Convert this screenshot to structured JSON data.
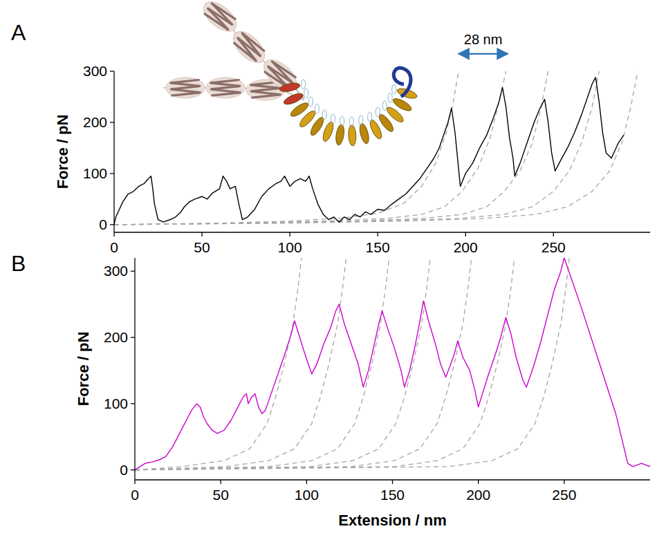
{
  "chart_data": [
    {
      "type": "line",
      "title": "A",
      "y_label": "Force / pN",
      "grid": false,
      "xlim": [
        0,
        305
      ],
      "xticks": [
        0,
        50,
        100,
        150,
        200,
        250
      ],
      "ylim": [
        -15,
        300
      ],
      "yticks": [
        0,
        100,
        200,
        300
      ],
      "series": [
        {
          "color": "#000000",
          "line_style": "solid",
          "x": [
            0,
            1,
            3,
            5,
            8,
            11,
            14,
            17,
            19,
            21,
            22,
            23,
            25,
            28,
            32,
            35,
            38,
            40,
            43,
            46,
            50,
            53,
            56,
            60,
            62,
            64,
            66,
            69,
            71,
            73,
            76,
            80,
            84,
            88,
            92,
            95,
            97,
            100,
            103,
            106,
            109,
            111,
            113,
            116,
            119,
            122,
            125,
            128,
            131,
            134,
            137,
            140,
            143,
            146,
            150,
            154,
            158,
            162,
            166,
            170,
            174,
            178,
            182,
            185,
            188,
            190,
            192,
            194,
            196,
            197,
            200,
            204,
            208,
            212,
            216,
            219,
            221,
            223,
            225,
            227,
            228,
            231,
            235,
            239,
            242,
            245,
            247,
            249,
            251,
            254,
            258,
            262,
            266,
            270,
            272,
            274,
            276,
            278,
            280,
            283,
            287,
            290
          ],
          "values": [
            0,
            15,
            30,
            45,
            60,
            65,
            75,
            80,
            88,
            95,
            70,
            40,
            10,
            5,
            10,
            15,
            25,
            35,
            45,
            50,
            55,
            50,
            62,
            70,
            95,
            85,
            70,
            75,
            40,
            10,
            15,
            30,
            55,
            70,
            80,
            85,
            95,
            75,
            85,
            90,
            85,
            95,
            70,
            40,
            20,
            10,
            15,
            5,
            15,
            10,
            20,
            15,
            25,
            20,
            30,
            28,
            40,
            50,
            60,
            75,
            90,
            110,
            130,
            150,
            180,
            200,
            228,
            180,
            110,
            75,
            100,
            120,
            150,
            175,
            210,
            240,
            268,
            230,
            170,
            130,
            95,
            120,
            160,
            200,
            225,
            245,
            200,
            140,
            105,
            125,
            150,
            180,
            215,
            255,
            275,
            288,
            240,
            180,
            140,
            130,
            160,
            175
          ]
        },
        {
          "color": "#a6a6a6",
          "line_style": "dashed",
          "x": [
            0,
            60,
            100,
            130,
            150,
            165,
            175,
            183,
            189,
            193,
            196
          ],
          "values": [
            0,
            3,
            7,
            13,
            22,
            42,
            75,
            120,
            180,
            240,
            300
          ]
        },
        {
          "color": "#a6a6a6",
          "line_style": "dashed",
          "x": [
            0,
            70,
            120,
            155,
            175,
            188,
            198,
            207,
            214,
            219,
            223
          ],
          "values": [
            0,
            3,
            7,
            12,
            20,
            35,
            65,
            110,
            170,
            240,
            300
          ]
        },
        {
          "color": "#a6a6a6",
          "line_style": "dashed",
          "x": [
            0,
            80,
            135,
            175,
            198,
            212,
            222,
            231,
            238,
            243,
            247
          ],
          "values": [
            0,
            3,
            7,
            12,
            20,
            35,
            65,
            105,
            160,
            230,
            300
          ]
        },
        {
          "color": "#a6a6a6",
          "line_style": "dashed",
          "x": [
            0,
            90,
            150,
            195,
            222,
            238,
            250,
            259,
            266,
            272,
            276
          ],
          "values": [
            0,
            3,
            7,
            12,
            20,
            35,
            65,
            105,
            160,
            230,
            300
          ]
        },
        {
          "color": "#a6a6a6",
          "line_style": "dashed",
          "x": [
            0,
            100,
            165,
            210,
            240,
            258,
            272,
            282,
            289,
            294,
            298
          ],
          "values": [
            0,
            3,
            7,
            12,
            20,
            35,
            65,
            105,
            160,
            230,
            300
          ]
        }
      ],
      "annotations": [
        {
          "text": "28 nm",
          "x": [
            196,
            224
          ],
          "y": 334,
          "color": "#2e75b6"
        }
      ]
    },
    {
      "type": "line",
      "title": "B",
      "x_label": "Extension / nm",
      "y_label": "Force / pN",
      "grid": false,
      "xlim": [
        0,
        300
      ],
      "xticks": [
        0,
        50,
        100,
        150,
        200,
        250
      ],
      "ylim": [
        -15,
        320
      ],
      "yticks": [
        0,
        100,
        200,
        300
      ],
      "series": [
        {
          "color": "#cc00cc",
          "line_style": "solid",
          "x": [
            0,
            3,
            6,
            10,
            14,
            18,
            22,
            26,
            30,
            33,
            36,
            38,
            40,
            42,
            45,
            48,
            52,
            56,
            60,
            63,
            65,
            66,
            68,
            70,
            72,
            74,
            76,
            80,
            84,
            88,
            91,
            93,
            96,
            99,
            103,
            106,
            110,
            114,
            117,
            119,
            122,
            126,
            130,
            133,
            136,
            139,
            142,
            144,
            147,
            151,
            155,
            157,
            160,
            163,
            166,
            168,
            171,
            175,
            178,
            181,
            184,
            186,
            188,
            191,
            195,
            198,
            200,
            203,
            206,
            210,
            213,
            216,
            219,
            222,
            226,
            228,
            232,
            236,
            240,
            244,
            248,
            250,
            260,
            270,
            280,
            287,
            290,
            295,
            300
          ],
          "values": [
            0,
            5,
            10,
            12,
            15,
            20,
            35,
            55,
            75,
            90,
            100,
            95,
            80,
            70,
            60,
            55,
            60,
            75,
            95,
            110,
            115,
            100,
            110,
            115,
            95,
            85,
            90,
            120,
            150,
            180,
            205,
            225,
            200,
            175,
            145,
            160,
            190,
            215,
            240,
            250,
            220,
            190,
            160,
            125,
            150,
            185,
            220,
            240,
            215,
            185,
            150,
            125,
            150,
            185,
            225,
            255,
            225,
            190,
            160,
            140,
            160,
            175,
            195,
            170,
            150,
            120,
            95,
            120,
            145,
            175,
            200,
            230,
            205,
            170,
            135,
            125,
            155,
            190,
            230,
            270,
            300,
            320,
            245,
            165,
            85,
            10,
            5,
            10,
            5
          ]
        },
        {
          "color": "#a6a6a6",
          "line_style": "dashed",
          "x": [
            0,
            27,
            52,
            67,
            77,
            82,
            87,
            92,
            95,
            97
          ],
          "values": [
            0,
            5,
            14,
            32,
            70,
            110,
            160,
            220,
            275,
            320
          ]
        },
        {
          "color": "#a6a6a6",
          "line_style": "dashed",
          "x": [
            0,
            53,
            78,
            93,
            103,
            108,
            113,
            118,
            121,
            123
          ],
          "values": [
            0,
            5,
            14,
            32,
            70,
            110,
            160,
            220,
            275,
            320
          ]
        },
        {
          "color": "#a6a6a6",
          "line_style": "dashed",
          "x": [
            0,
            78,
            103,
            118,
            128,
            133,
            138,
            143,
            146,
            148
          ],
          "values": [
            0,
            5,
            14,
            32,
            70,
            110,
            160,
            220,
            275,
            320
          ]
        },
        {
          "color": "#a6a6a6",
          "line_style": "dashed",
          "x": [
            0,
            102,
            127,
            142,
            152,
            157,
            162,
            167,
            170,
            172
          ],
          "values": [
            0,
            5,
            14,
            32,
            70,
            110,
            160,
            220,
            275,
            320
          ]
        },
        {
          "color": "#a6a6a6",
          "line_style": "dashed",
          "x": [
            0,
            126,
            151,
            166,
            176,
            181,
            186,
            191,
            194,
            196
          ],
          "values": [
            0,
            5,
            14,
            32,
            70,
            110,
            160,
            220,
            275,
            320
          ]
        },
        {
          "color": "#a6a6a6",
          "line_style": "dashed",
          "x": [
            0,
            151,
            176,
            191,
            201,
            206,
            211,
            216,
            219,
            221
          ],
          "values": [
            0,
            5,
            14,
            32,
            70,
            110,
            160,
            220,
            275,
            320
          ]
        },
        {
          "color": "#a6a6a6",
          "line_style": "dashed",
          "x": [
            0,
            183,
            208,
            223,
            233,
            238,
            243,
            248,
            251,
            253
          ],
          "values": [
            0,
            5,
            14,
            32,
            70,
            110,
            160,
            220,
            275,
            320
          ]
        }
      ]
    }
  ]
}
